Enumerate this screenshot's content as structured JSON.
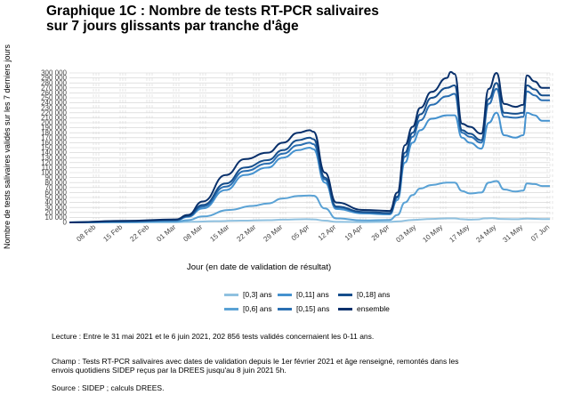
{
  "title": {
    "line1": "Graphique 1C : Nombre de tests RT-PCR salivaires",
    "line2": "sur 7 jours glissants par tranche d'âge"
  },
  "notes": {
    "lecture": "Lecture : Entre le 31 mai 2021 et le 6 juin 2021, 202 856 tests validés concernaient les 0-11 ans.",
    "champ": "Champ : Tests RT-PCR salivaires avec dates de validation depuis le 1er février 2021 et âge renseigné, remontés dans les envois quotidiens SIDEP reçus par la DREES jusqu'au 8 juin 2021 5h.",
    "source": "Source : SIDEP ; calculs DREES."
  },
  "chart_data": {
    "type": "line",
    "title": "Graphique 1C : Nombre de tests RT-PCR salivaires sur 7 jours glissants par tranche d'âge",
    "xlabel": "Jour (en date de validation de résultat)",
    "ylabel": "Nombre de tests salivaires validés sur les 7 derniers jours",
    "x_ticks": [
      "08 Feb",
      "15 Feb",
      "22 Feb",
      "01 Mar",
      "08 Mar",
      "15 Mar",
      "22 Mar",
      "29 Mar",
      "05 Apr",
      "12 Apr",
      "19 Apr",
      "26 Apr",
      "03 May",
      "10 May",
      "17 May",
      "24 May",
      "31 May",
      "07 Jun"
    ],
    "x_tick_index": [
      7,
      14,
      21,
      28,
      35,
      42,
      49,
      56,
      63,
      70,
      77,
      84,
      91,
      98,
      105,
      112,
      119,
      126
    ],
    "y_ticks": [
      "0",
      "10 000",
      "20 000",
      "30 000",
      "40 000",
      "50 000",
      "60 000",
      "70 000",
      "80 000",
      "90 000",
      "100 000",
      "110 000",
      "120 000",
      "130 000",
      "140 000",
      "150 000",
      "160 000",
      "170 000",
      "180 000",
      "190 000",
      "200 000",
      "210 000",
      "220 000",
      "230 000",
      "240 000",
      "250 000",
      "260 000",
      "270 000",
      "280 000",
      "290 000",
      "300 000"
    ],
    "ylim": [
      0,
      300000
    ],
    "x_start": "2021-02-01",
    "x_end": "2021-06-06",
    "legend_position": "bottom",
    "grid": true,
    "series": [
      {
        "name": "[0,3] ans",
        "color": "#8fc1e0",
        "knots": [
          [
            0,
            0
          ],
          [
            14,
            200
          ],
          [
            28,
            500
          ],
          [
            32,
            1200
          ],
          [
            38,
            2500
          ],
          [
            45,
            3500
          ],
          [
            52,
            4500
          ],
          [
            56,
            5500
          ],
          [
            62,
            6500
          ],
          [
            64,
            6000
          ],
          [
            67,
            3500
          ],
          [
            70,
            1000
          ],
          [
            77,
            600
          ],
          [
            84,
            1000
          ],
          [
            86,
            2000
          ],
          [
            90,
            5000
          ],
          [
            95,
            7000
          ],
          [
            99,
            8000
          ],
          [
            101,
            8000
          ],
          [
            103,
            6500
          ],
          [
            105,
            5500
          ],
          [
            107,
            6000
          ],
          [
            109,
            8000
          ],
          [
            111,
            8500
          ],
          [
            113,
            7000
          ],
          [
            117,
            6500
          ],
          [
            120,
            7500
          ],
          [
            124,
            6800
          ],
          [
            126,
            6800
          ]
        ]
      },
      {
        "name": "[0,6] ans",
        "color": "#5aa2d5",
        "knots": [
          [
            0,
            0
          ],
          [
            14,
            500
          ],
          [
            28,
            1500
          ],
          [
            31,
            4500
          ],
          [
            35,
            12000
          ],
          [
            42,
            25000
          ],
          [
            48,
            33000
          ],
          [
            52,
            38000
          ],
          [
            56,
            48000
          ],
          [
            60,
            53000
          ],
          [
            63,
            54000
          ],
          [
            64,
            53500
          ],
          [
            67,
            28000
          ],
          [
            70,
            8000
          ],
          [
            77,
            4000
          ],
          [
            84,
            5000
          ],
          [
            86,
            15000
          ],
          [
            88,
            40000
          ],
          [
            90,
            55000
          ],
          [
            92,
            68000
          ],
          [
            95,
            75000
          ],
          [
            99,
            80000
          ],
          [
            101,
            80000
          ],
          [
            103,
            63000
          ],
          [
            105,
            58000
          ],
          [
            108,
            60000
          ],
          [
            110,
            80000
          ],
          [
            112,
            83000
          ],
          [
            114,
            66000
          ],
          [
            117,
            62000
          ],
          [
            119,
            64000
          ],
          [
            120,
            78000
          ],
          [
            122,
            77000
          ],
          [
            124,
            73000
          ],
          [
            126,
            73000
          ]
        ]
      },
      {
        "name": "[0,11] ans",
        "color": "#4592cf",
        "knots": [
          [
            0,
            0
          ],
          [
            14,
            1500
          ],
          [
            28,
            4000
          ],
          [
            31,
            11000
          ],
          [
            35,
            28000
          ],
          [
            41,
            65000
          ],
          [
            46,
            95000
          ],
          [
            52,
            110000
          ],
          [
            56,
            130000
          ],
          [
            60,
            145000
          ],
          [
            63,
            150000
          ],
          [
            64,
            147000
          ],
          [
            67,
            80000
          ],
          [
            70,
            27000
          ],
          [
            77,
            18000
          ],
          [
            84,
            16000
          ],
          [
            86,
            45000
          ],
          [
            88,
            120000
          ],
          [
            90,
            160000
          ],
          [
            92,
            185000
          ],
          [
            95,
            208000
          ],
          [
            99,
            215000
          ],
          [
            101,
            215000
          ],
          [
            103,
            170000
          ],
          [
            105,
            160000
          ],
          [
            108,
            148000
          ],
          [
            110,
            200000
          ],
          [
            112,
            220000
          ],
          [
            114,
            175000
          ],
          [
            117,
            170000
          ],
          [
            119,
            175000
          ],
          [
            120,
            220000
          ],
          [
            122,
            215000
          ],
          [
            124,
            204000
          ],
          [
            126,
            204000
          ]
        ]
      },
      {
        "name": "[0,15] ans",
        "color": "#2a6fb2",
        "knots": [
          [
            0,
            0
          ],
          [
            14,
            2000
          ],
          [
            28,
            4500
          ],
          [
            31,
            12000
          ],
          [
            35,
            32000
          ],
          [
            41,
            72000
          ],
          [
            46,
            103000
          ],
          [
            52,
            118000
          ],
          [
            56,
            138000
          ],
          [
            60,
            155000
          ],
          [
            63,
            160000
          ],
          [
            64,
            157000
          ],
          [
            67,
            86000
          ],
          [
            70,
            30000
          ],
          [
            77,
            20000
          ],
          [
            84,
            18000
          ],
          [
            86,
            50000
          ],
          [
            88,
            132000
          ],
          [
            90,
            172000
          ],
          [
            92,
            205000
          ],
          [
            95,
            236000
          ],
          [
            99,
            253000
          ],
          [
            101,
            258000
          ],
          [
            103,
            180000
          ],
          [
            105,
            172000
          ],
          [
            108,
            160000
          ],
          [
            110,
            238000
          ],
          [
            112,
            268000
          ],
          [
            114,
            212000
          ],
          [
            117,
            210000
          ],
          [
            119,
            212000
          ],
          [
            120,
            263000
          ],
          [
            122,
            255000
          ],
          [
            124,
            245000
          ],
          [
            126,
            245000
          ]
        ]
      },
      {
        "name": "[0,18] ans",
        "color": "#154e8c",
        "knots": [
          [
            0,
            0
          ],
          [
            14,
            2500
          ],
          [
            28,
            5000
          ],
          [
            31,
            13000
          ],
          [
            35,
            35000
          ],
          [
            41,
            78000
          ],
          [
            46,
            110000
          ],
          [
            52,
            125000
          ],
          [
            56,
            145000
          ],
          [
            60,
            165000
          ],
          [
            63,
            170000
          ],
          [
            64,
            167000
          ],
          [
            67,
            90000
          ],
          [
            70,
            32000
          ],
          [
            77,
            21000
          ],
          [
            84,
            19000
          ],
          [
            86,
            52000
          ],
          [
            88,
            140000
          ],
          [
            90,
            180000
          ],
          [
            92,
            217000
          ],
          [
            95,
            250000
          ],
          [
            99,
            270000
          ],
          [
            101,
            275000
          ],
          [
            103,
            185000
          ],
          [
            105,
            178000
          ],
          [
            108,
            165000
          ],
          [
            110,
            248000
          ],
          [
            112,
            280000
          ],
          [
            114,
            220000
          ],
          [
            117,
            218000
          ],
          [
            119,
            220000
          ],
          [
            120,
            275000
          ],
          [
            122,
            267000
          ],
          [
            124,
            255000
          ],
          [
            126,
            255000
          ]
        ]
      },
      {
        "name": "ensemble",
        "color": "#08306b",
        "knots": [
          [
            0,
            0
          ],
          [
            14,
            3000
          ],
          [
            28,
            6000
          ],
          [
            31,
            15000
          ],
          [
            35,
            42000
          ],
          [
            41,
            95000
          ],
          [
            46,
            127000
          ],
          [
            52,
            140000
          ],
          [
            56,
            160000
          ],
          [
            60,
            180000
          ],
          [
            63,
            185000
          ],
          [
            64,
            182000
          ],
          [
            67,
            100000
          ],
          [
            70,
            40000
          ],
          [
            77,
            25000
          ],
          [
            84,
            23000
          ],
          [
            86,
            60000
          ],
          [
            88,
            155000
          ],
          [
            90,
            192000
          ],
          [
            92,
            230000
          ],
          [
            95,
            262000
          ],
          [
            99,
            290000
          ],
          [
            100,
            302000
          ],
          [
            101,
            298000
          ],
          [
            103,
            198000
          ],
          [
            105,
            192000
          ],
          [
            108,
            178000
          ],
          [
            110,
            268000
          ],
          [
            112,
            300000
          ],
          [
            114,
            238000
          ],
          [
            117,
            232000
          ],
          [
            119,
            236000
          ],
          [
            120,
            295000
          ],
          [
            122,
            283000
          ],
          [
            124,
            270000
          ],
          [
            126,
            270000
          ]
        ]
      }
    ]
  }
}
